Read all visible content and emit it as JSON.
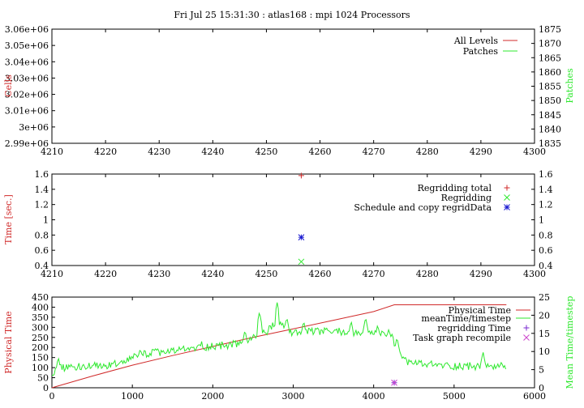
{
  "title": "Fri Jul 25 15:31:30 : atlas168 : mpi 1024 Processors",
  "colors": {
    "red": "#d02a2a",
    "green": "#2ee82e",
    "blue": "#1a1ad0",
    "magenta": "#cc44cc",
    "purple": "#7a2ad0",
    "axis": "#000000"
  },
  "chart_data": [
    {
      "type": "line",
      "xlim": [
        4210,
        4300
      ],
      "ylim": [
        2990000,
        3060000
      ],
      "y2lim": [
        1835,
        1875
      ],
      "ylabel": "Cells",
      "y2label": "Patches",
      "xticks": [
        "4210",
        "4220",
        "4230",
        "4240",
        "4250",
        "4260",
        "4270",
        "4280",
        "4290",
        "4300"
      ],
      "yticks": [
        "2.99e+06",
        "3e+06",
        "3.01e+06",
        "3.02e+06",
        "3.03e+06",
        "3.04e+06",
        "3.05e+06",
        "3.06e+06"
      ],
      "y2ticks": [
        "1835",
        "1840",
        "1845",
        "1850",
        "1855",
        "1860",
        "1865",
        "1870",
        "1875"
      ],
      "legend_position": "top-right",
      "series": [
        {
          "name": "All Levels",
          "color": "red",
          "axis": "y",
          "points": []
        },
        {
          "name": "Patches",
          "color": "green",
          "axis": "y2",
          "points": []
        }
      ]
    },
    {
      "type": "scatter",
      "xlim": [
        4210,
        4300
      ],
      "ylim": [
        0.4,
        1.6
      ],
      "y2lim": [
        0.4,
        1.6
      ],
      "ylabel": "Time [sec.]",
      "xticks": [
        "4210",
        "4220",
        "4230",
        "4240",
        "4250",
        "4260",
        "4270",
        "4280",
        "4290",
        "4300"
      ],
      "yticks": [
        "0.4",
        "0.6",
        "0.8",
        "1",
        "1.2",
        "1.4",
        "1.6"
      ],
      "y2ticks": [
        "0.4",
        "0.6",
        "0.8",
        "1",
        "1.2",
        "1.4",
        "1.6"
      ],
      "legend_position": "top-right",
      "series": [
        {
          "name": "Regridding total",
          "color": "red",
          "marker": "plus",
          "points": [
            [
              4256.5,
              1.58
            ]
          ]
        },
        {
          "name": "Regridding",
          "color": "green",
          "marker": "cross",
          "points": [
            [
              4256.5,
              0.45
            ]
          ]
        },
        {
          "name": "Schedule and copy regridData",
          "color": "blue",
          "marker": "star",
          "points": [
            [
              4256.5,
              0.77
            ]
          ]
        }
      ]
    },
    {
      "type": "line",
      "xlim": [
        0,
        6000
      ],
      "ylim": [
        0,
        450
      ],
      "y2lim": [
        0,
        25
      ],
      "ylabel": "Physical Time",
      "y2label": "Mean Time/timestep",
      "xticks": [
        "0",
        "1000",
        "2000",
        "3000",
        "4000",
        "5000",
        "6000"
      ],
      "yticks": [
        "0",
        "50",
        "100",
        "150",
        "200",
        "250",
        "300",
        "350",
        "400",
        "450"
      ],
      "y2ticks": [
        "0",
        "5",
        "10",
        "15",
        "20",
        "25"
      ],
      "legend_position": "top-right",
      "series": [
        {
          "name": "Physical Time",
          "color": "red",
          "axis": "y",
          "style": "line",
          "points": [
            [
              0,
              0
            ],
            [
              500,
              58
            ],
            [
              1000,
              112
            ],
            [
              1500,
              160
            ],
            [
              2000,
              205
            ],
            [
              2500,
              250
            ],
            [
              3000,
              292
            ],
            [
              3500,
              335
            ],
            [
              4000,
              378
            ],
            [
              4256,
              412
            ],
            [
              5000,
              412
            ],
            [
              5650,
              412
            ]
          ]
        },
        {
          "name": "meanTime/timestep",
          "color": "green",
          "axis": "y2",
          "style": "line",
          "anchors": [
            [
              0,
              3.2
            ],
            [
              60,
              5.6
            ],
            [
              300,
              5.8
            ],
            [
              600,
              6.0
            ],
            [
              900,
              6.5
            ],
            [
              1000,
              8.5
            ],
            [
              1200,
              9.5
            ],
            [
              1500,
              10.0
            ],
            [
              1800,
              11.0
            ],
            [
              2000,
              11.5
            ],
            [
              2300,
              12.0
            ],
            [
              2500,
              13.5
            ],
            [
              2700,
              16.0
            ],
            [
              2800,
              18.0
            ],
            [
              3000,
              15.0
            ],
            [
              3300,
              15.5
            ],
            [
              3600,
              15.5
            ],
            [
              3900,
              14.5
            ],
            [
              4200,
              15.0
            ],
            [
              4300,
              10.5
            ],
            [
              4350,
              7.5
            ],
            [
              4600,
              6.5
            ],
            [
              5000,
              6.0
            ],
            [
              5400,
              6.0
            ],
            [
              5650,
              5.8
            ]
          ],
          "spikes": [
            [
              80,
              8.5
            ],
            [
              780,
              8.0
            ],
            [
              1090,
              10.5
            ],
            [
              1580,
              11.5
            ],
            [
              1860,
              13.0
            ],
            [
              2110,
              11.5
            ],
            [
              2400,
              16.0
            ],
            [
              2580,
              21.0
            ],
            [
              2800,
              23.5
            ],
            [
              2920,
              19.5
            ],
            [
              3130,
              18.5
            ],
            [
              3310,
              17.0
            ],
            [
              3720,
              18.5
            ],
            [
              3900,
              19.5
            ],
            [
              4050,
              17.5
            ],
            [
              4290,
              14.0
            ],
            [
              5360,
              10.0
            ]
          ]
        },
        {
          "name": "regridding Time",
          "color": "purple",
          "marker": "plus",
          "axis": "y",
          "points": [
            [
              4256,
              25
            ]
          ]
        },
        {
          "name": "Task graph recompile",
          "color": "magenta",
          "marker": "cross",
          "axis": "y",
          "points": [
            [
              4256,
              25
            ]
          ]
        }
      ]
    }
  ]
}
